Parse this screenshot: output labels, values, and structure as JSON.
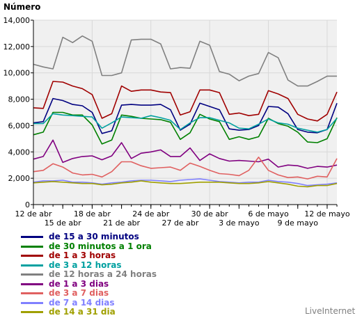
{
  "chart_data": {
    "type": "line",
    "ylabel": "Número",
    "xlabel": "",
    "ylim": [
      0,
      14000
    ],
    "yticks": [
      0,
      2000,
      4000,
      6000,
      8000,
      10000,
      12000,
      14000
    ],
    "yticklabels": [
      "0",
      "2,000",
      "4,000",
      "6,000",
      "8,000",
      "10,000",
      "12,000",
      "14,000"
    ],
    "x_days": 61,
    "xticks_row1": [
      {
        "day": 0,
        "label": "12 de abr"
      },
      {
        "day": 6,
        "label": "18 de abr"
      },
      {
        "day": 12,
        "label": "24 de abr"
      },
      {
        "day": 18,
        "label": "30 de abr"
      },
      {
        "day": 24,
        "label": "6 de mayo"
      },
      {
        "day": 30,
        "label": "12 de mayo"
      }
    ],
    "xticks_row2": [
      {
        "day": 3,
        "label": "15 de abr"
      },
      {
        "day": 9,
        "label": "21 de abr"
      },
      {
        "day": 15,
        "label": "27 de abr"
      },
      {
        "day": 21,
        "label": "3 de mayo"
      },
      {
        "day": 27,
        "label": "9 de mayo"
      }
    ],
    "grid": true,
    "background": "#f0f0f0",
    "legend_position": "bottom-left",
    "series": [
      {
        "name": "de 15 a 30 minutos",
        "color": "#000080",
        "values": [
          6200,
          6300,
          8050,
          7900,
          7600,
          7500,
          7000,
          5400,
          5600,
          7550,
          7600,
          7550,
          7550,
          7600,
          7200,
          5650,
          6100,
          7700,
          7450,
          7200,
          5750,
          5650,
          5700,
          6000,
          7450,
          7400,
          6900,
          5700,
          5500,
          5450,
          5700,
          7700
        ]
      },
      {
        "name": "de 30 minutos a 1 ora",
        "color": "#008000",
        "values": [
          5300,
          5500,
          7000,
          7000,
          6800,
          6800,
          6050,
          4600,
          4900,
          6800,
          6700,
          6550,
          6500,
          6450,
          6250,
          4950,
          5450,
          6850,
          6500,
          6300,
          4950,
          5150,
          4950,
          5150,
          6550,
          6150,
          5950,
          5500,
          4750,
          4700,
          5000,
          6600
        ]
      },
      {
        "name": "de 1 a 3 horas",
        "color": "#a00000",
        "values": [
          7350,
          7300,
          9350,
          9300,
          9000,
          8800,
          8350,
          6550,
          6900,
          9000,
          8600,
          8700,
          8700,
          8550,
          8500,
          6800,
          7050,
          8700,
          8700,
          8500,
          6850,
          6950,
          6750,
          6850,
          8650,
          8400,
          8050,
          6850,
          6500,
          6350,
          6850,
          8550
        ]
      },
      {
        "name": "de 3 a 12 horas",
        "color": "#00a0a0",
        "values": [
          6150,
          6150,
          6900,
          6800,
          6750,
          6700,
          6650,
          5800,
          6200,
          6650,
          6600,
          6550,
          6750,
          6600,
          6400,
          5700,
          6200,
          6600,
          6600,
          6400,
          6200,
          5800,
          5750,
          6100,
          6500,
          6200,
          6100,
          5800,
          5650,
          5500,
          5700,
          6550
        ]
      },
      {
        "name": "de 12 horas a 24 horas",
        "color": "#808080",
        "values": [
          10650,
          10450,
          10300,
          12700,
          12300,
          12800,
          12400,
          9800,
          9800,
          10000,
          12500,
          12550,
          12550,
          12200,
          10300,
          10400,
          10350,
          12400,
          12100,
          10100,
          9900,
          9400,
          9750,
          9950,
          11550,
          11150,
          9450,
          9000,
          9000,
          9350,
          9750,
          9750
        ]
      },
      {
        "name": "de 1 a 3 dias",
        "color": "#800080",
        "values": [
          3450,
          3650,
          4900,
          3200,
          3500,
          3650,
          3700,
          3400,
          3700,
          4700,
          3500,
          3900,
          4000,
          4150,
          3650,
          3650,
          4300,
          3350,
          3850,
          3500,
          3300,
          3350,
          3300,
          3250,
          3450,
          2850,
          3000,
          2950,
          2750,
          2900,
          2850,
          3000
        ]
      },
      {
        "name": "de 3 a 7 dias",
        "color": "#e06060",
        "values": [
          2500,
          2600,
          3100,
          2850,
          2400,
          2250,
          2300,
          2100,
          2500,
          3250,
          3250,
          2950,
          2750,
          2800,
          2850,
          2600,
          3150,
          2900,
          2600,
          2350,
          2300,
          2200,
          2600,
          3600,
          2600,
          2250,
          2050,
          2100,
          1950,
          2150,
          2100,
          3500
        ]
      },
      {
        "name": "de 7 a 14 dias",
        "color": "#8080ff",
        "values": [
          1700,
          1800,
          1800,
          1850,
          1700,
          1700,
          1650,
          1550,
          1650,
          1700,
          1800,
          1850,
          1850,
          1800,
          1750,
          1850,
          1900,
          1950,
          1850,
          1750,
          1700,
          1650,
          1700,
          1700,
          1850,
          1750,
          1700,
          1600,
          1450,
          1500,
          1550,
          1650
        ]
      },
      {
        "name": "de 14 a 31 dia",
        "color": "#a0a000",
        "values": [
          1650,
          1700,
          1750,
          1700,
          1650,
          1600,
          1600,
          1500,
          1550,
          1650,
          1700,
          1800,
          1700,
          1650,
          1600,
          1600,
          1650,
          1700,
          1700,
          1700,
          1650,
          1600,
          1600,
          1650,
          1750,
          1650,
          1550,
          1400,
          1350,
          1450,
          1450,
          1600
        ]
      }
    ]
  },
  "watermark": "LiveInternet"
}
